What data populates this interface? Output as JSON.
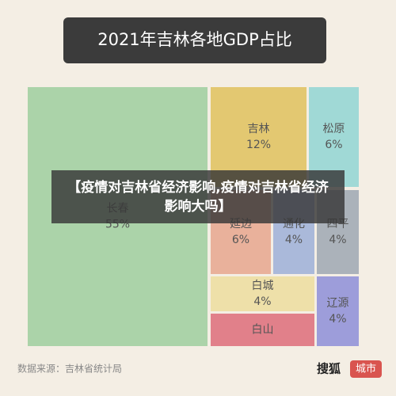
{
  "chart_data": {
    "type": "treemap",
    "title": "2021年吉林各地GDP占比",
    "categories": [
      "长春",
      "吉林",
      "松原",
      "延边",
      "通化",
      "四平",
      "白城",
      "白山",
      "辽源"
    ],
    "values": [
      55,
      12,
      6,
      6,
      4,
      4,
      4,
      4,
      4
    ],
    "value_labels": [
      "55%",
      "12%",
      "6%",
      "6%",
      "4%",
      "4%",
      "4%",
      null,
      "4%"
    ],
    "colors": [
      "#abd3a9",
      "#e3c871",
      "#a0d9d6",
      "#e9b19b",
      "#aab9da",
      "#abb2ba",
      "#eee0a9",
      "#e1808a",
      "#9d9dda"
    ],
    "source": "数据来源：吉林省统计局"
  },
  "overlay": {
    "text": "【疫情对吉林省经济影响,疫情对吉林省经济影响大吗】"
  },
  "logo": {
    "brand": "搜狐",
    "channel": "城市"
  }
}
